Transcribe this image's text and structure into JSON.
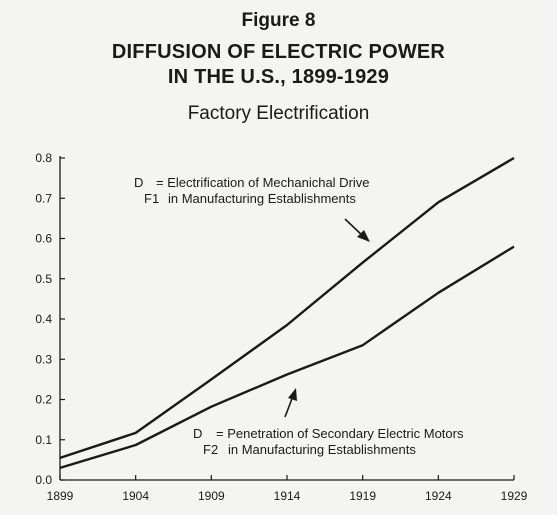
{
  "figure_label": "Figure 8",
  "title_line1": "DIFFUSION OF ELECTRIC POWER",
  "title_line2": "IN THE U.S., 1899-1929",
  "subtitle": "Factory Electrification",
  "chart_data": {
    "type": "line",
    "title": "DIFFUSION OF ELECTRIC POWER IN THE U.S., 1899-1929",
    "subtitle": "Factory Electrification",
    "xlabel": "",
    "ylabel": "",
    "x": [
      1899,
      1904,
      1909,
      1914,
      1919,
      1924,
      1929
    ],
    "xlim": [
      1899,
      1929
    ],
    "ylim": [
      0,
      0.8
    ],
    "x_ticks": [
      "1899",
      "1904",
      "1909",
      "1914",
      "1919",
      "1924",
      "1929"
    ],
    "y_ticks": [
      "0.0",
      "0.1",
      "0.2",
      "0.3",
      "0.4",
      "0.5",
      "0.6",
      "0.7",
      "0.8"
    ],
    "grid": false,
    "line_color": "#1a1a1a",
    "series": [
      {
        "label_main": "D",
        "label_sub": "F1",
        "label_line1": "= Electrification of Mechanichal Drive",
        "label_line2": "in Manufacturing Establishments",
        "values": [
          0.055,
          0.117,
          0.25,
          0.385,
          0.54,
          0.69,
          0.8
        ]
      },
      {
        "label_main": "D",
        "label_sub": "F2",
        "label_line1": "= Penetration of Secondary Electric Motors",
        "label_line2": "in Manufacturing Establishments",
        "values": [
          0.03,
          0.087,
          0.182,
          0.262,
          0.335,
          0.465,
          0.58
        ]
      }
    ]
  }
}
